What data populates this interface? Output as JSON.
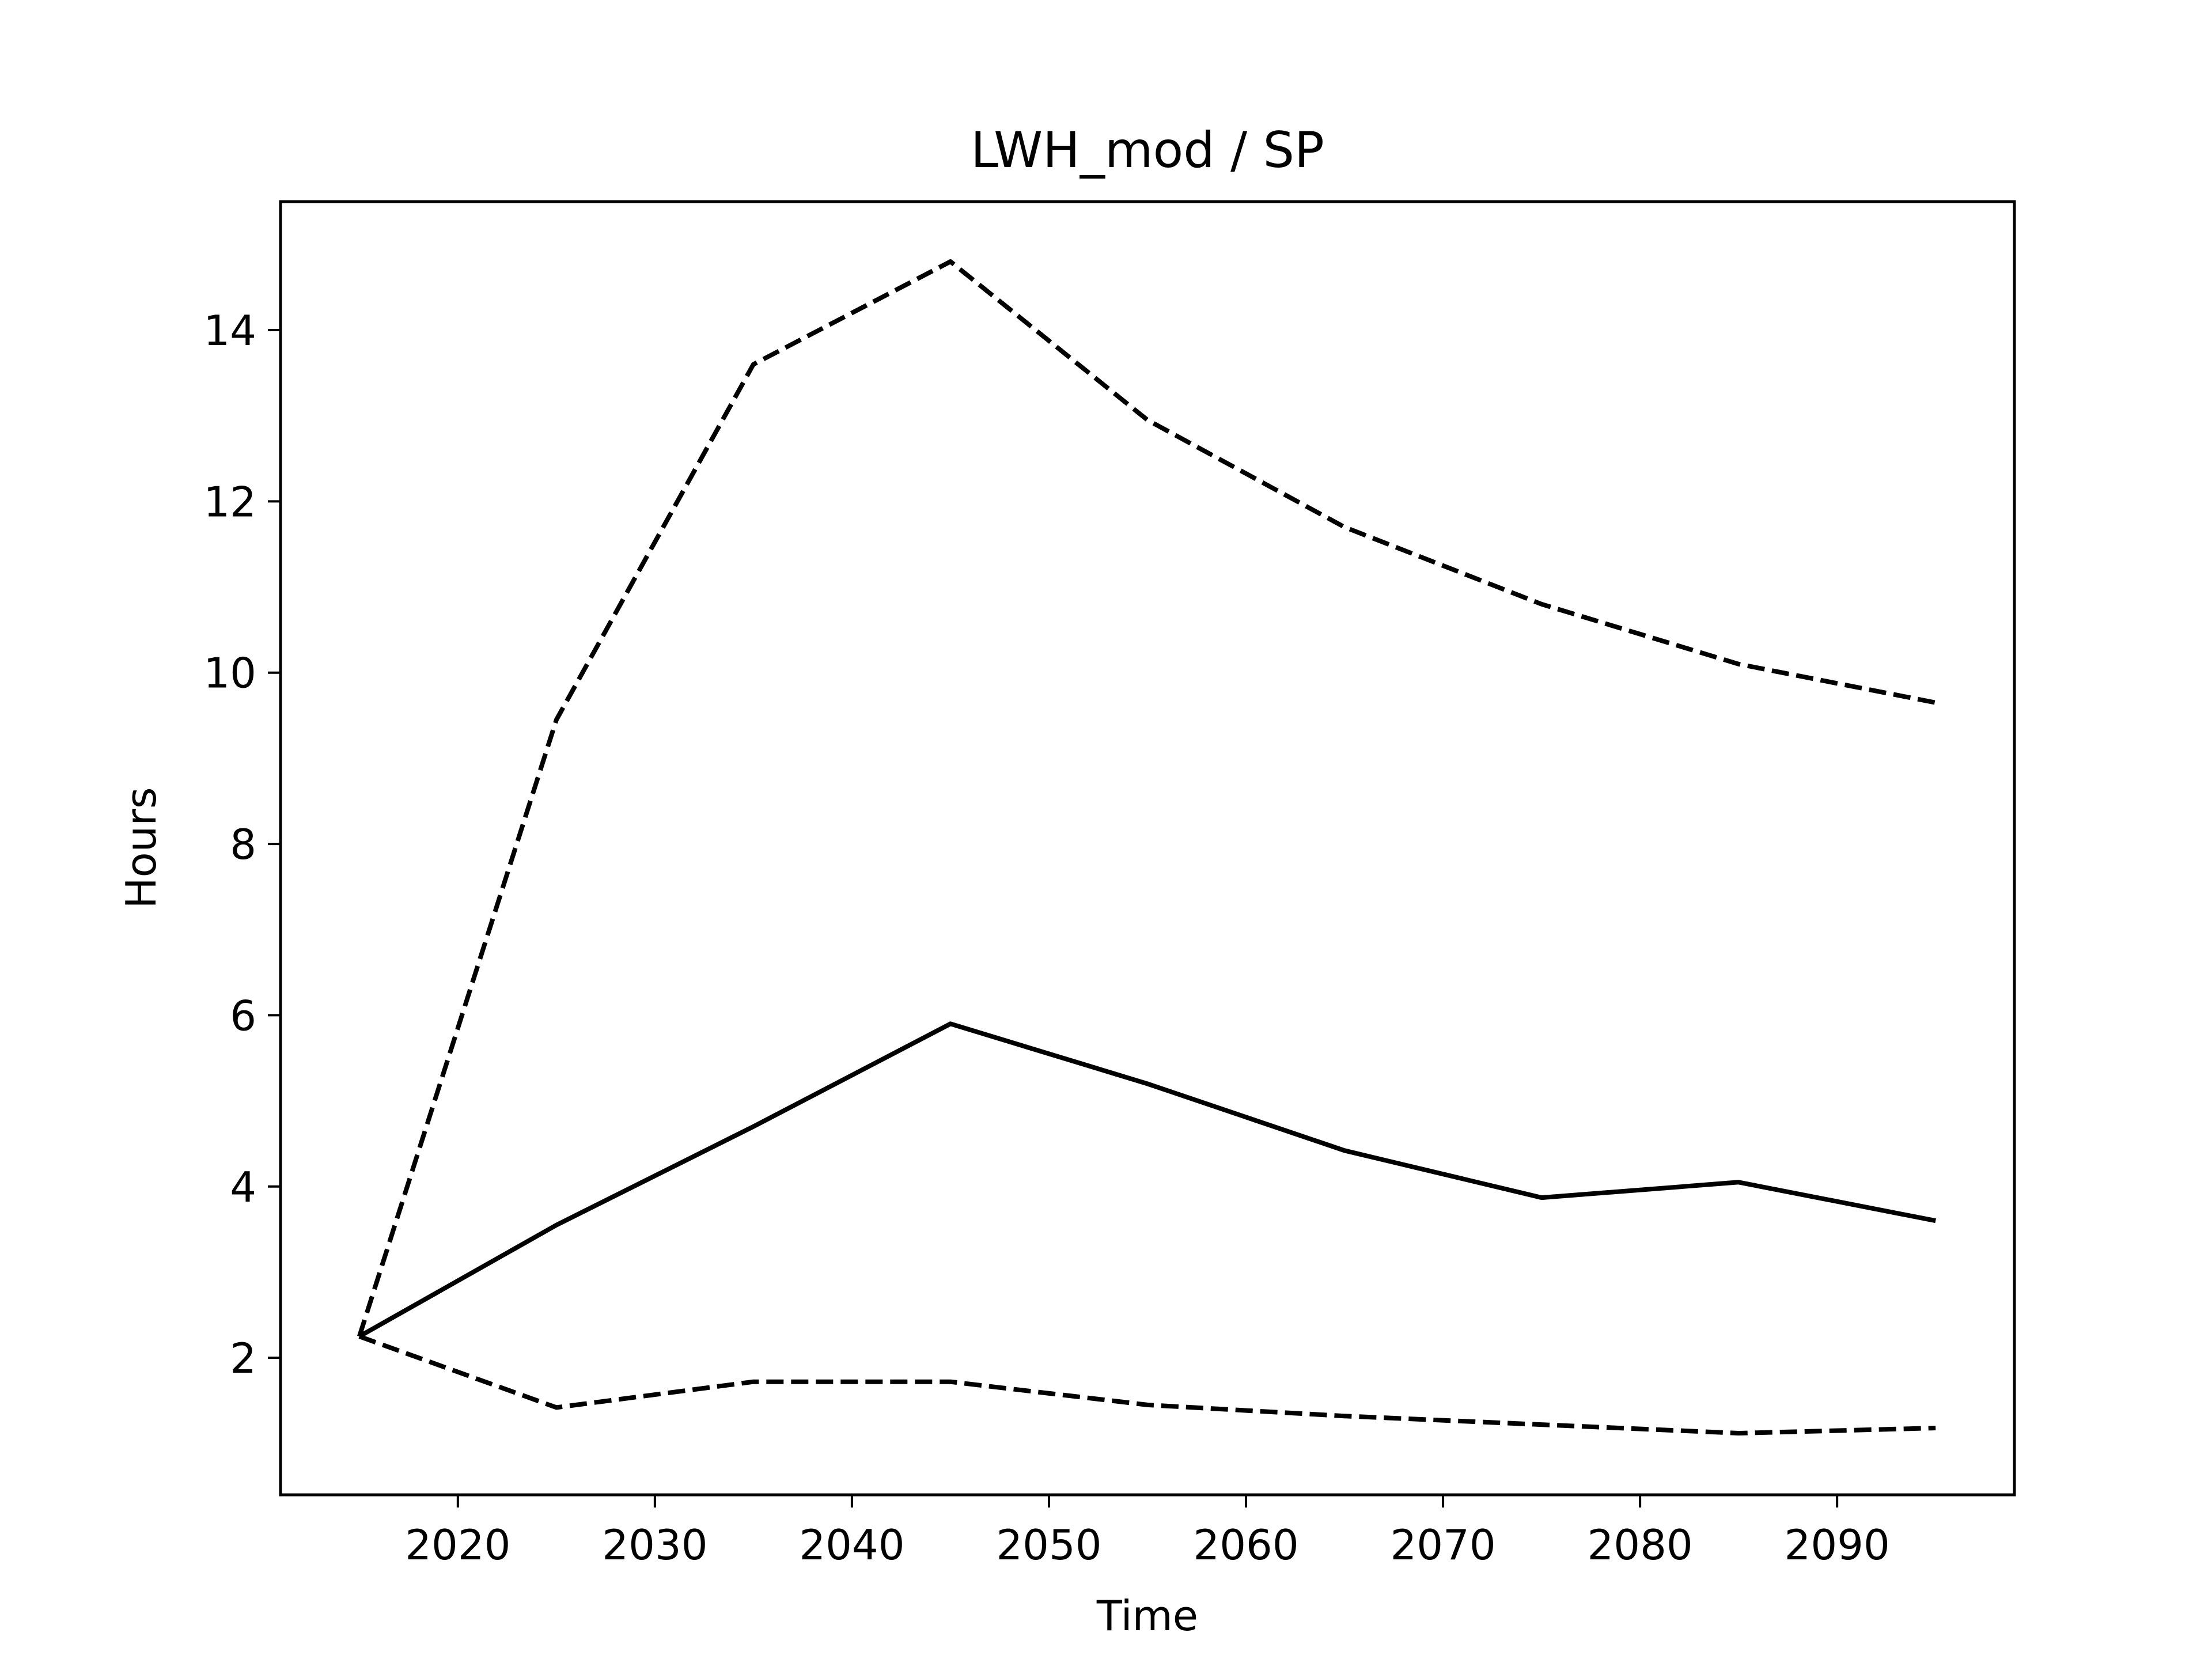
{
  "chart_data": {
    "type": "line",
    "title": "LWH_mod / SP",
    "xlabel": "Time",
    "ylabel": "Hours",
    "xlim": [
      2011,
      2099
    ],
    "ylim": [
      0.4,
      15.5
    ],
    "xticks": [
      2020,
      2030,
      2040,
      2050,
      2060,
      2070,
      2080,
      2090
    ],
    "yticks": [
      2,
      4,
      6,
      8,
      10,
      12,
      14
    ],
    "grid": false,
    "x": [
      2015,
      2025,
      2035,
      2045,
      2055,
      2065,
      2075,
      2085,
      2095
    ],
    "series": [
      {
        "style": "dashed",
        "color": "#000000",
        "values": [
          2.25,
          9.45,
          13.6,
          14.8,
          12.95,
          11.7,
          10.8,
          10.1,
          9.65
        ]
      },
      {
        "style": "solid",
        "color": "#000000",
        "values": [
          2.25,
          3.55,
          4.7,
          5.9,
          5.2,
          4.42,
          3.87,
          4.05,
          3.6
        ]
      },
      {
        "style": "dashed",
        "color": "#000000",
        "values": [
          2.25,
          1.42,
          1.72,
          1.72,
          1.45,
          1.32,
          1.22,
          1.12,
          1.18
        ]
      }
    ]
  }
}
